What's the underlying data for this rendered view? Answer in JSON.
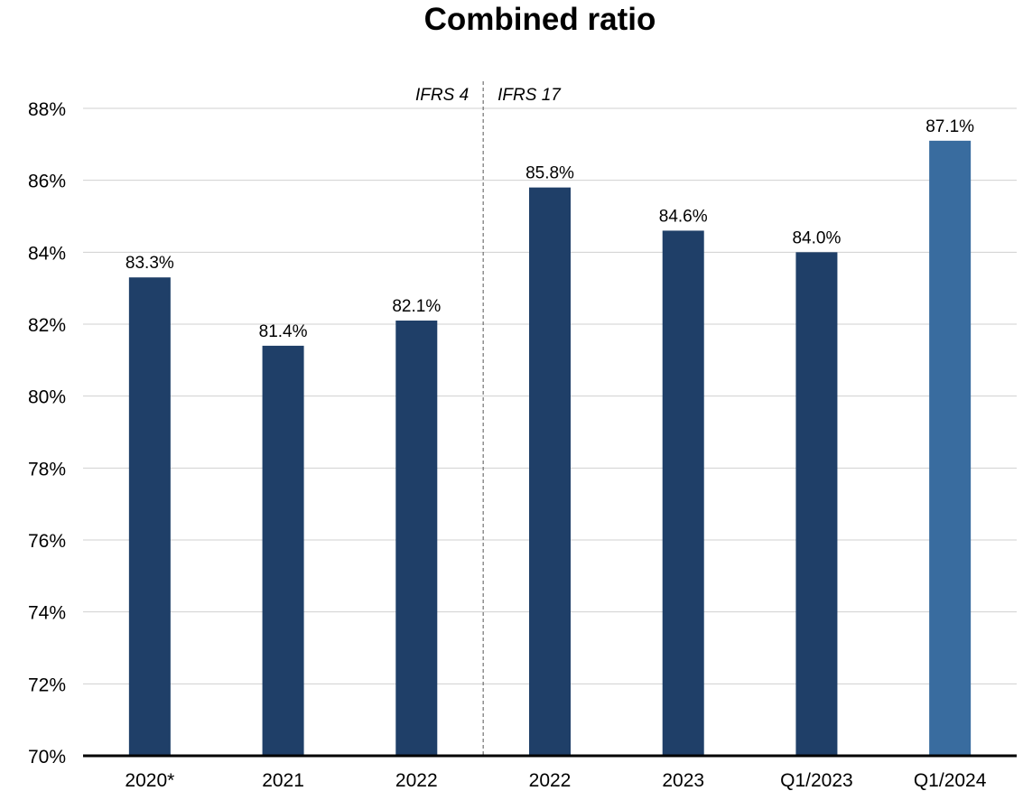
{
  "chart_data": {
    "type": "bar",
    "title": "Combined ratio",
    "categories": [
      "2020*",
      "2021",
      "2022",
      "2022",
      "2023",
      "Q1/2023",
      "Q1/2024"
    ],
    "values": [
      83.3,
      81.4,
      82.1,
      85.8,
      84.6,
      84.0,
      87.1
    ],
    "value_labels": [
      "83.3%",
      "81.4%",
      "82.1%",
      "85.8%",
      "84.6%",
      "84.0%",
      "87.1%"
    ],
    "ylim": [
      70,
      88
    ],
    "yticks": [
      70,
      72,
      74,
      76,
      78,
      80,
      82,
      84,
      86,
      88
    ],
    "ytick_labels": [
      "70%",
      "72%",
      "74%",
      "76%",
      "78%",
      "80%",
      "82%",
      "84%",
      "86%",
      "88%"
    ],
    "xlabel": "",
    "ylabel": "",
    "grid": true,
    "annotations": {
      "left_label": "IFRS 4",
      "right_label": "IFRS 17"
    },
    "colors": {
      "bar": "#1f3f68",
      "highlight": "#396c9f",
      "grid": "#d0d0d0",
      "axis": "#000000"
    },
    "highlight_index": 6
  }
}
